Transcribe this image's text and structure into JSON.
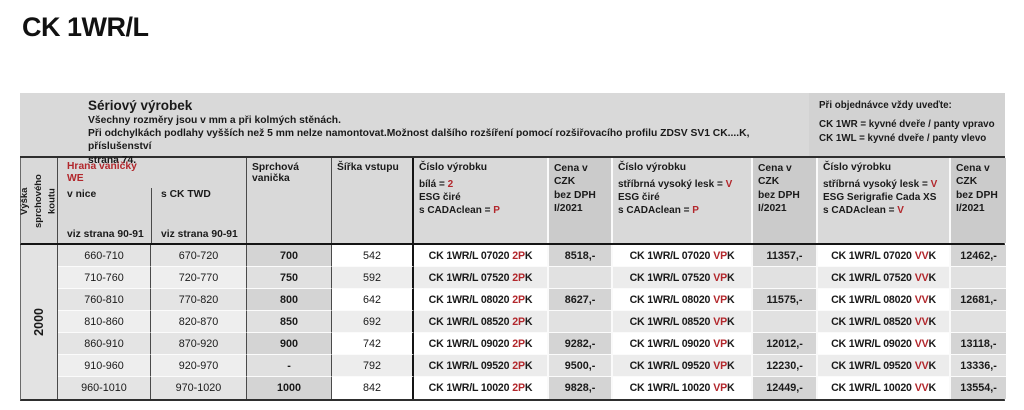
{
  "page_title": "CK 1WR/L",
  "accent_red": "#b2272c",
  "info": {
    "title": "Sériový výrobek",
    "line1": "Všechny rozměry jsou v mm a při kolmých stěnách.",
    "line2": "Při odchylkách podlahy vyšších než 5 mm nelze namontovat.Možnost dalšího rozšíření pomocí rozšiřovacího profilu ZDSV SV1 CK....K, příslušenství",
    "line3": "strana 74.",
    "order_note": {
      "title": "Při objednávce vždy uveďte:",
      "line1": "CK 1WR = kyvné dveře / panty vpravo",
      "line2": "CK 1WL = kyvné dveře / panty vlevo"
    }
  },
  "header": {
    "height_label": "Výška sprchového koutu",
    "edge_group": {
      "title_line1": "Hrana vaničky",
      "title_line2": "WE",
      "col_nice": "v nice",
      "col_twd": "s CK TWD",
      "see_page": "viz strana 90-91"
    },
    "tray": "Sprchová vanička",
    "entry_width": "Šířka vstupu",
    "product_col_1": {
      "title": "Číslo výrobku",
      "lines": [
        [
          "bílá = ",
          "2"
        ],
        [
          "ESG čiré",
          ""
        ],
        [
          "s CADAclean = ",
          "P"
        ]
      ]
    },
    "product_col_2": {
      "title": "Číslo výrobku",
      "lines": [
        [
          "stříbrná vysoký lesk = ",
          "V"
        ],
        [
          "ESG čiré",
          ""
        ],
        [
          "s CADAclean = ",
          "P"
        ]
      ]
    },
    "product_col_3": {
      "title": "Číslo výrobku",
      "lines": [
        [
          "stříbrná vysoký lesk = ",
          "V"
        ],
        [
          "ESG Serigrafie Cada XS",
          ""
        ],
        [
          "s CADAclean = ",
          "V"
        ]
      ]
    },
    "price_header": {
      "l1": "Cena v CZK",
      "l2": "bez DPH",
      "l3": "I/2021"
    }
  },
  "body": {
    "height_value": "2000",
    "rows": [
      {
        "v_nice": "660-710",
        "s_ck_twd": "670-720",
        "vanicka": "700",
        "sirka": "542",
        "code_1": {
          "b": "CK 1WR/L 07020",
          "r": "2P",
          "k": "K"
        },
        "price_1": "8518,-",
        "code_2": {
          "b": "CK 1WR/L 07020",
          "r": "VP",
          "k": "K"
        },
        "price_2": "11357,-",
        "code_3": {
          "b": "CK 1WR/L 07020",
          "r": "VV",
          "k": "K"
        },
        "price_3": "12462,-"
      },
      {
        "v_nice": "710-760",
        "s_ck_twd": "720-770",
        "vanicka": "750",
        "sirka": "592",
        "code_1": {
          "b": "CK 1WR/L 07520",
          "r": "2P",
          "k": "K"
        },
        "price_1": "",
        "code_2": {
          "b": "CK 1WR/L 07520",
          "r": "VP",
          "k": "K"
        },
        "price_2": "",
        "code_3": {
          "b": "CK 1WR/L 07520",
          "r": "VV",
          "k": "K"
        },
        "price_3": ""
      },
      {
        "v_nice": "760-810",
        "s_ck_twd": "770-820",
        "vanicka": "800",
        "sirka": "642",
        "code_1": {
          "b": "CK 1WR/L 08020",
          "r": "2P",
          "k": "K"
        },
        "price_1": "8627,-",
        "code_2": {
          "b": "CK 1WR/L 08020",
          "r": "VP",
          "k": "K"
        },
        "price_2": "11575,-",
        "code_3": {
          "b": "CK 1WR/L 08020",
          "r": "VV",
          "k": "K"
        },
        "price_3": "12681,-"
      },
      {
        "v_nice": "810-860",
        "s_ck_twd": "820-870",
        "vanicka": "850",
        "sirka": "692",
        "code_1": {
          "b": "CK 1WR/L 08520",
          "r": "2P",
          "k": "K"
        },
        "price_1": "",
        "code_2": {
          "b": "CK 1WR/L 08520",
          "r": "VP",
          "k": "K"
        },
        "price_2": "",
        "code_3": {
          "b": "CK 1WR/L 08520",
          "r": "VV",
          "k": "K"
        },
        "price_3": ""
      },
      {
        "v_nice": "860-910",
        "s_ck_twd": "870-920",
        "vanicka": "900",
        "sirka": "742",
        "code_1": {
          "b": "CK 1WR/L 09020",
          "r": "2P",
          "k": "K"
        },
        "price_1": "9282,-",
        "code_2": {
          "b": "CK 1WR/L 09020",
          "r": "VP",
          "k": "K"
        },
        "price_2": "12012,-",
        "code_3": {
          "b": "CK 1WR/L 09020",
          "r": "VV",
          "k": "K"
        },
        "price_3": "13118,-"
      },
      {
        "v_nice": "910-960",
        "s_ck_twd": "920-970",
        "vanicka": "-",
        "sirka": "792",
        "code_1": {
          "b": "CK 1WR/L 09520",
          "r": "2P",
          "k": "K"
        },
        "price_1": "9500,-",
        "code_2": {
          "b": "CK 1WR/L 09520",
          "r": "VP",
          "k": "K"
        },
        "price_2": "12230,-",
        "code_3": {
          "b": "CK 1WR/L 09520",
          "r": "VV",
          "k": "K"
        },
        "price_3": "13336,-"
      },
      {
        "v_nice": "960-1010",
        "s_ck_twd": "970-1020",
        "vanicka": "1000",
        "sirka": "842",
        "code_1": {
          "b": "CK 1WR/L 10020",
          "r": "2P",
          "k": "K"
        },
        "price_1": "9828,-",
        "code_2": {
          "b": "CK 1WR/L 10020",
          "r": "VP",
          "k": "K"
        },
        "price_2": "12449,-",
        "code_3": {
          "b": "CK 1WR/L 10020",
          "r": "VV",
          "k": "K"
        },
        "price_3": "13554,-"
      }
    ]
  }
}
